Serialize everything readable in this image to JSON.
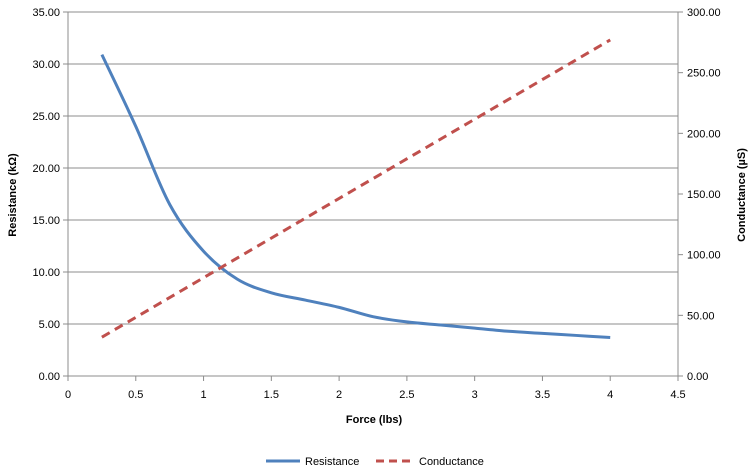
{
  "chart_data": {
    "type": "line",
    "x_axis": {
      "label": "Force (lbs)",
      "range": [
        0,
        4.5
      ],
      "ticks": [
        0,
        0.5,
        1,
        1.5,
        2,
        2.5,
        3,
        3.5,
        4,
        4.5
      ],
      "tick_labels": [
        "0",
        "0.5",
        "1",
        "1.5",
        "2",
        "2.5",
        "3",
        "3.5",
        "4",
        "4.5"
      ]
    },
    "y_axis_left": {
      "label": "Resistance (kΩ)",
      "range": [
        0,
        35
      ],
      "ticks": [
        0,
        5,
        10,
        15,
        20,
        25,
        30,
        35
      ],
      "tick_labels": [
        "0.00",
        "5.00",
        "10.00",
        "15.00",
        "20.00",
        "25.00",
        "30.00",
        "35.00"
      ]
    },
    "y_axis_right": {
      "label": "Conductance (µS)",
      "range": [
        0,
        300
      ],
      "ticks": [
        0,
        50,
        100,
        150,
        200,
        250,
        300
      ],
      "tick_labels": [
        "0.00",
        "50.00",
        "100.00",
        "150.00",
        "200.00",
        "250.00",
        "300.00"
      ]
    },
    "grid": "horizontal",
    "legend_position": "bottom",
    "series": [
      {
        "name": "Resistance",
        "axis": "left",
        "color": "#4F81BD",
        "style": "solid",
        "x": [
          0.25,
          0.5,
          0.75,
          1.0,
          1.25,
          1.5,
          1.75,
          2.0,
          2.25,
          2.5,
          2.75,
          3.0,
          3.25,
          3.5,
          3.75,
          4.0
        ],
        "values": [
          30.9,
          24.0,
          16.5,
          12.0,
          9.3,
          8.0,
          7.3,
          6.6,
          5.7,
          5.2,
          4.9,
          4.6,
          4.3,
          4.1,
          3.9,
          3.7
        ]
      },
      {
        "name": "Conductance",
        "axis": "right",
        "color": "#C0504D",
        "style": "dashed",
        "x": [
          0.25,
          4.0
        ],
        "values": [
          32,
          277
        ]
      }
    ]
  }
}
